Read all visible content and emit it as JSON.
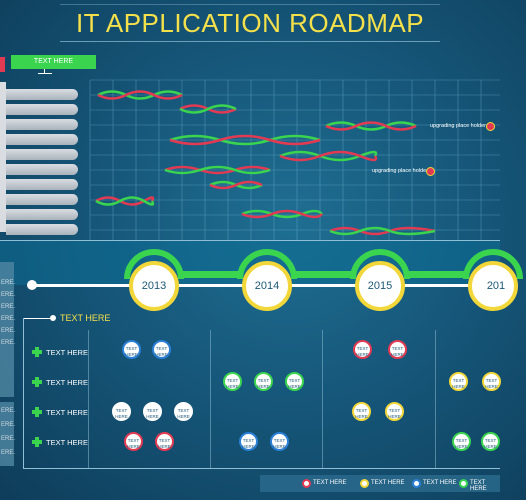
{
  "title": "IT APPLICATION ROADMAP",
  "top_button": "TEXT HERE",
  "years": [
    "2013",
    "2014",
    "2015",
    "201"
  ],
  "section_title": "TEXT HERE",
  "row_labels": [
    "TEXT HERE",
    "TEXT HERE",
    "TEXT HERE",
    "TEXT HERE"
  ],
  "left_panel_text": [
    "ERE.",
    "ERE.",
    "ERE.",
    "ERE.",
    "ERE.",
    "ERE.",
    "ERE.",
    "ERE.",
    "ERE.",
    "ERE."
  ],
  "circle_label": "TEXT HERE",
  "notes": [
    "upgrading place holder",
    "upgrading place holder"
  ],
  "legend": [
    "TEXT HERE",
    "TEXT HERE",
    "TEXT HERE",
    "TEXT HERE"
  ],
  "colors": {
    "title": "#f4e04a",
    "green": "#3ad44f",
    "red": "#e23a52",
    "yellow": "#f2d73a",
    "blue": "#2a7fd6",
    "background": "#16577a"
  }
}
